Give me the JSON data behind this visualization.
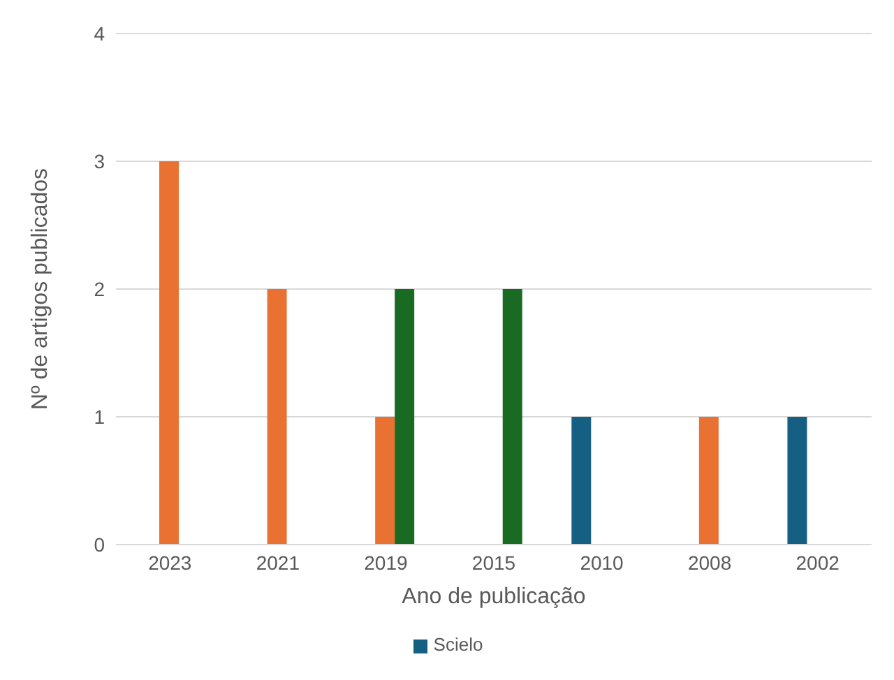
{
  "chart_data": {
    "type": "bar",
    "xlabel": "Ano de publicação",
    "ylabel": "Nº de artigos publicados",
    "categories": [
      "2023",
      "2021",
      "2019",
      "2015",
      "2010",
      "2008",
      "2002"
    ],
    "series": [
      {
        "name": "Scielo",
        "color": "#156082",
        "values": [
          null,
          null,
          null,
          null,
          1,
          null,
          1
        ]
      },
      {
        "color": "#e97132",
        "values": [
          3,
          2,
          1,
          null,
          null,
          1,
          null
        ]
      },
      {
        "color": "#196b24",
        "values": [
          null,
          null,
          2,
          2,
          null,
          null,
          null
        ]
      }
    ],
    "ylim": [
      0,
      4
    ],
    "yticks": [
      0,
      1,
      2,
      3,
      4
    ],
    "grid": "y",
    "legend": "bottom"
  }
}
